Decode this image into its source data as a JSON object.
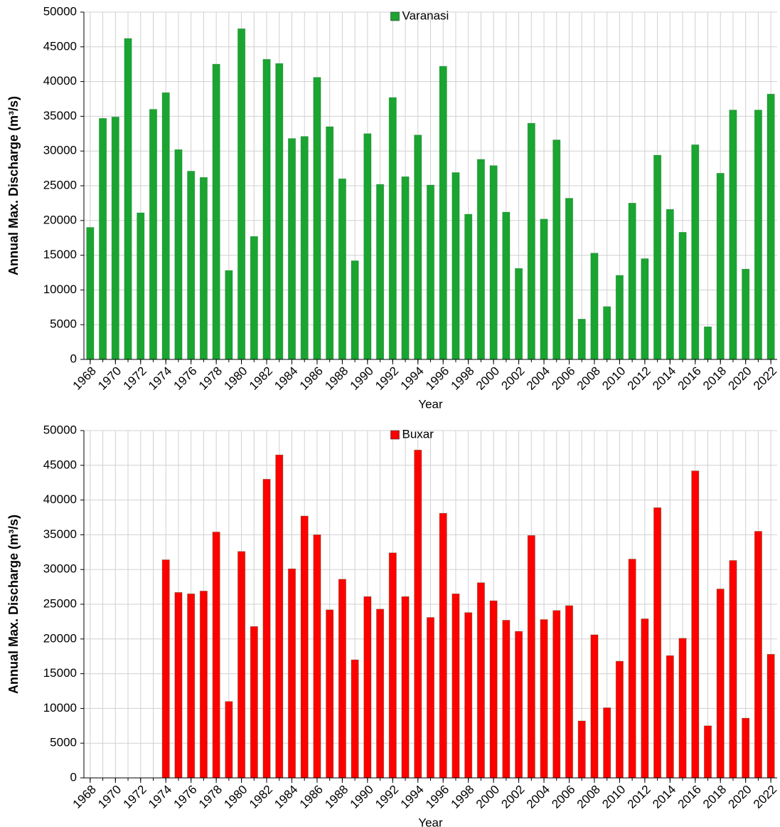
{
  "chart_data": [
    {
      "type": "bar",
      "xlabel": "Year",
      "ylabel": "Annual Max. Discharge (m³/s)",
      "x": [
        1968,
        1969,
        1970,
        1971,
        1972,
        1973,
        1974,
        1975,
        1976,
        1977,
        1978,
        1979,
        1980,
        1981,
        1982,
        1983,
        1984,
        1985,
        1986,
        1987,
        1988,
        1989,
        1990,
        1991,
        1992,
        1993,
        1994,
        1995,
        1996,
        1997,
        1998,
        1999,
        2000,
        2001,
        2002,
        2003,
        2004,
        2005,
        2006,
        2007,
        2008,
        2009,
        2010,
        2011,
        2012,
        2013,
        2014,
        2015,
        2016,
        2017,
        2018,
        2019,
        2020,
        2021,
        2022
      ],
      "series": [
        {
          "name": "Varanasi",
          "color": "#1aa531",
          "values": [
            19000,
            34700,
            34900,
            46200,
            21100,
            36000,
            38400,
            30200,
            27100,
            26200,
            42500,
            12800,
            47600,
            17700,
            43200,
            42600,
            31800,
            32100,
            40600,
            33500,
            26000,
            14200,
            32500,
            25200,
            37700,
            26300,
            32300,
            25100,
            42200,
            26900,
            20900,
            28800,
            27900,
            21200,
            13100,
            34000,
            20200,
            31600,
            23200,
            5800,
            15300,
            7600,
            12100,
            22500,
            14500,
            29400,
            21600,
            18300,
            30900,
            4700,
            26800,
            35900,
            13000,
            35900,
            38200
          ]
        }
      ],
      "xlim": [
        1967.5,
        2022.5
      ],
      "xticks": [
        1968,
        1970,
        1972,
        1974,
        1976,
        1978,
        1980,
        1982,
        1984,
        1986,
        1988,
        1990,
        1992,
        1994,
        1996,
        1998,
        2000,
        2002,
        2004,
        2006,
        2008,
        2010,
        2012,
        2014,
        2016,
        2018,
        2020,
        2022
      ],
      "ylim": [
        0,
        50000
      ],
      "yticks": [
        0,
        5000,
        10000,
        15000,
        20000,
        25000,
        30000,
        35000,
        40000,
        45000,
        50000
      ],
      "grid": true,
      "legend": "top"
    },
    {
      "type": "bar",
      "xlabel": "Year",
      "ylabel": "Annual Max. Discharge (m³/s)",
      "x": [
        1968,
        1969,
        1970,
        1971,
        1972,
        1973,
        1974,
        1975,
        1976,
        1977,
        1978,
        1979,
        1980,
        1981,
        1982,
        1983,
        1984,
        1985,
        1986,
        1987,
        1988,
        1989,
        1990,
        1991,
        1992,
        1993,
        1994,
        1995,
        1996,
        1997,
        1998,
        1999,
        2000,
        2001,
        2002,
        2003,
        2004,
        2005,
        2006,
        2007,
        2008,
        2009,
        2010,
        2011,
        2012,
        2013,
        2014,
        2015,
        2016,
        2017,
        2018,
        2019,
        2020,
        2021,
        2022
      ],
      "series": [
        {
          "name": "Buxar",
          "color": "#ff0000",
          "values": [
            null,
            null,
            null,
            null,
            null,
            null,
            31400,
            26700,
            26500,
            26900,
            35400,
            11000,
            32600,
            21800,
            43000,
            46500,
            30100,
            37700,
            35000,
            24200,
            28600,
            17000,
            26100,
            24300,
            32400,
            26100,
            47200,
            23100,
            38100,
            26500,
            23800,
            28100,
            25500,
            22700,
            21100,
            34900,
            22800,
            24100,
            24800,
            8200,
            20600,
            10100,
            16800,
            31500,
            22900,
            38900,
            17600,
            20100,
            44200,
            7500,
            27200,
            31300,
            8600,
            35500,
            17800
          ]
        }
      ],
      "xlim": [
        1967.5,
        2022.5
      ],
      "xticks": [
        1968,
        1970,
        1972,
        1974,
        1976,
        1978,
        1980,
        1982,
        1984,
        1986,
        1988,
        1990,
        1992,
        1994,
        1996,
        1998,
        2000,
        2002,
        2004,
        2006,
        2008,
        2010,
        2012,
        2014,
        2016,
        2018,
        2020,
        2022
      ],
      "ylim": [
        0,
        50000
      ],
      "yticks": [
        0,
        5000,
        10000,
        15000,
        20000,
        25000,
        30000,
        35000,
        40000,
        45000,
        50000
      ],
      "grid": true,
      "legend": "top"
    }
  ]
}
